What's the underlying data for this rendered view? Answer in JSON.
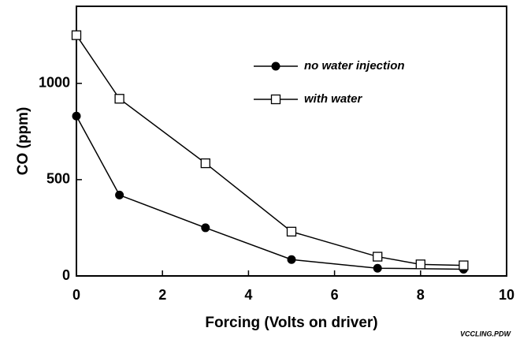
{
  "chart_data": {
    "type": "line",
    "xlabel": "Forcing (Volts on driver)",
    "ylabel": "CO (ppm)",
    "annotation": "VCCLING.PDW",
    "xlim": [
      0,
      10
    ],
    "xticks": [
      0,
      2,
      4,
      6,
      8,
      10
    ],
    "ylim": [
      0,
      1400
    ],
    "yticks": [
      0,
      500,
      1000
    ],
    "legend": "top",
    "series": [
      {
        "name": "no water injection",
        "color": "#000000",
        "marker": "circle",
        "x": [
          0,
          1,
          3,
          5,
          7,
          9
        ],
        "values": [
          830,
          420,
          250,
          85,
          40,
          35
        ]
      },
      {
        "name": "with water",
        "color": "#000000",
        "marker": "square",
        "x": [
          0,
          1,
          3,
          5,
          7,
          8,
          9
        ],
        "values": [
          1250,
          920,
          585,
          230,
          100,
          60,
          55
        ]
      }
    ]
  }
}
